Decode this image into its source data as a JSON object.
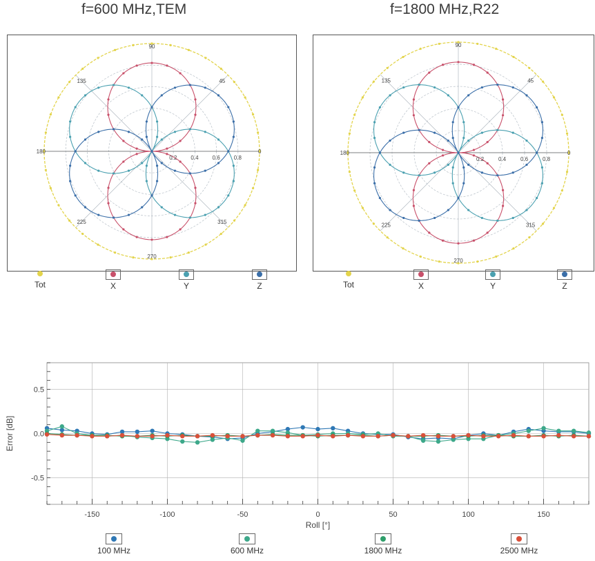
{
  "chart_data": [
    {
      "type": "polar",
      "title": "f=600 MHz,TEM",
      "angle_ticks": [
        "90",
        "135",
        "45",
        "180",
        "0",
        "225",
        "315",
        "270"
      ],
      "radial_ticks": [
        "0.2",
        "0.4",
        "0.6",
        "0.8"
      ],
      "rlim": [
        0,
        1
      ],
      "grid": true,
      "legend": [
        "Tot",
        "X",
        "Y",
        "Z"
      ],
      "legend_placement": "bottom",
      "series": [
        {
          "name": "Tot",
          "pattern": "constant",
          "r": 1.0,
          "color": "#e3d44c"
        },
        {
          "name": "X",
          "pattern": "|sin(theta)|",
          "peak": 0.82,
          "color": "#c8506a"
        },
        {
          "name": "Y",
          "pattern": "|sin(theta-60)|",
          "peak": 0.82,
          "color": "#4aa0b0"
        },
        {
          "name": "Z",
          "pattern": "|sin(theta+60)|",
          "peak": 0.82,
          "color": "#3a6ea8"
        }
      ]
    },
    {
      "type": "polar",
      "title": "f=1800 MHz,R22",
      "angle_ticks": [
        "90",
        "135",
        "45",
        "180",
        "0",
        "225",
        "315",
        "270"
      ],
      "radial_ticks": [
        "0.2",
        "0.4",
        "0.6",
        "0.8"
      ],
      "rlim": [
        0,
        1
      ],
      "grid": true,
      "legend": [
        "Tot",
        "X",
        "Y",
        "Z"
      ],
      "legend_placement": "bottom",
      "series": [
        {
          "name": "Tot",
          "pattern": "constant",
          "r": 1.0,
          "color": "#e3d44c"
        },
        {
          "name": "X",
          "pattern": "|sin(theta)|",
          "peak": 0.82,
          "color": "#c8506a"
        },
        {
          "name": "Y",
          "pattern": "|sin(theta-60)|",
          "peak": 0.82,
          "color": "#4aa0b0"
        },
        {
          "name": "Z",
          "pattern": "|sin(theta+60)|",
          "peak": 0.82,
          "color": "#3a6ea8"
        }
      ]
    },
    {
      "type": "line",
      "title": "",
      "xlabel": "Roll [°]",
      "ylabel": "Error [dB]",
      "xlim": [
        -180,
        180
      ],
      "ylim": [
        -0.8,
        0.8
      ],
      "x_ticks": [
        -150,
        -100,
        -50,
        0,
        50,
        100,
        150
      ],
      "y_ticks": [
        0.5,
        0.0,
        -0.5
      ],
      "y_tick_labels": [
        "0.5",
        "0.0",
        "-0.5"
      ],
      "grid": true,
      "legend_placement": "bottom",
      "x": [
        -180,
        -170,
        -160,
        -150,
        -140,
        -130,
        -120,
        -110,
        -100,
        -90,
        -80,
        -70,
        -60,
        -50,
        -40,
        -30,
        -20,
        -10,
        0,
        10,
        20,
        30,
        40,
        50,
        60,
        70,
        80,
        90,
        100,
        110,
        120,
        130,
        140,
        150,
        160,
        170,
        180
      ],
      "series": [
        {
          "name": "100 MHz",
          "color": "#2f78b5",
          "values": [
            0.06,
            0.04,
            0.03,
            0.0,
            -0.01,
            0.02,
            0.02,
            0.03,
            0.0,
            -0.01,
            -0.03,
            -0.04,
            -0.06,
            -0.05,
            0.0,
            0.02,
            0.05,
            0.07,
            0.05,
            0.06,
            0.03,
            0.0,
            -0.01,
            -0.01,
            -0.04,
            -0.06,
            -0.05,
            -0.06,
            -0.02,
            0.0,
            -0.02,
            0.02,
            0.05,
            0.03,
            0.02,
            0.02,
            0.0
          ]
        },
        {
          "name": "600 MHz",
          "color": "#3da88a",
          "values": [
            0.03,
            0.08,
            0.0,
            -0.02,
            -0.03,
            -0.02,
            -0.04,
            -0.05,
            -0.06,
            -0.09,
            -0.1,
            -0.07,
            -0.05,
            -0.08,
            0.03,
            0.03,
            0.01,
            -0.02,
            -0.01,
            0.0,
            0.0,
            -0.01,
            0.0,
            -0.03,
            -0.03,
            -0.08,
            -0.09,
            -0.07,
            -0.06,
            -0.06,
            -0.02,
            0.0,
            0.03,
            0.06,
            0.03,
            0.03,
            0.01
          ]
        },
        {
          "name": "1800 MHz",
          "color": "#2e9e6a",
          "values": [
            0.0,
            -0.01,
            -0.02,
            -0.02,
            -0.02,
            -0.03,
            -0.03,
            -0.02,
            -0.03,
            -0.02,
            -0.03,
            -0.03,
            -0.02,
            -0.03,
            -0.02,
            -0.01,
            -0.02,
            -0.02,
            -0.03,
            -0.02,
            -0.02,
            -0.02,
            -0.03,
            -0.02,
            -0.03,
            -0.03,
            -0.02,
            -0.03,
            -0.03,
            -0.02,
            -0.02,
            -0.03,
            -0.03,
            -0.02,
            -0.03,
            -0.02,
            -0.03
          ]
        },
        {
          "name": "2500 MHz",
          "color": "#d9503a",
          "values": [
            -0.01,
            -0.02,
            -0.02,
            -0.03,
            -0.03,
            -0.02,
            -0.03,
            -0.03,
            -0.02,
            -0.03,
            -0.03,
            -0.02,
            -0.03,
            -0.03,
            -0.02,
            -0.02,
            -0.03,
            -0.03,
            -0.02,
            -0.03,
            -0.02,
            -0.03,
            -0.03,
            -0.02,
            -0.03,
            -0.02,
            -0.03,
            -0.03,
            -0.02,
            -0.03,
            -0.03,
            -0.02,
            -0.03,
            -0.03,
            -0.02,
            -0.03,
            -0.03
          ]
        }
      ]
    }
  ]
}
